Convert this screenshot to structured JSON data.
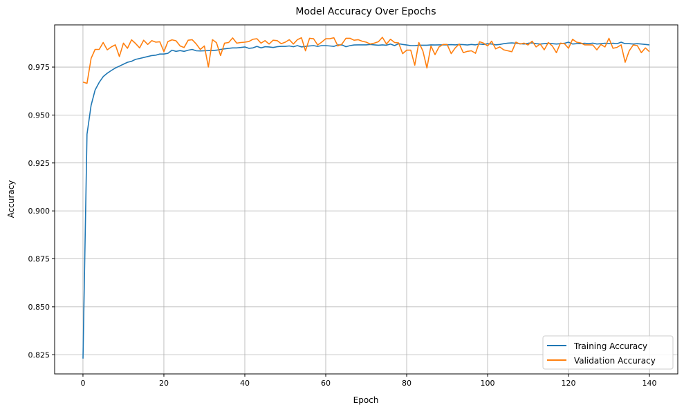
{
  "chart_data": {
    "type": "line",
    "title": "Model Accuracy Over Epochs",
    "xlabel": "Epoch",
    "ylabel": "Accuracy",
    "xlim": [
      -7,
      147
    ],
    "ylim": [
      0.815,
      0.997
    ],
    "xticks": [
      0,
      20,
      40,
      60,
      80,
      100,
      120,
      140
    ],
    "yticks": [
      0.825,
      0.85,
      0.875,
      0.9,
      0.925,
      0.95,
      0.975
    ],
    "ytick_labels": [
      "0.825",
      "0.850",
      "0.875",
      "0.900",
      "0.925",
      "0.950",
      "0.975"
    ],
    "grid": true,
    "legend_position": "bottom-right",
    "series": [
      {
        "name": "Training Accuracy",
        "color": "#1f77b4",
        "values": [
          0.823,
          0.94,
          0.955,
          0.963,
          0.967,
          0.97,
          0.9718,
          0.9732,
          0.9745,
          0.9755,
          0.9765,
          0.9775,
          0.978,
          0.979,
          0.9795,
          0.98,
          0.9805,
          0.981,
          0.9812,
          0.9818,
          0.9818,
          0.9822,
          0.9838,
          0.9832,
          0.9836,
          0.9832,
          0.9838,
          0.9842,
          0.9835,
          0.9834,
          0.9835,
          0.9836,
          0.9836,
          0.9838,
          0.9842,
          0.9845,
          0.9848,
          0.985,
          0.985,
          0.9852,
          0.9855,
          0.9848,
          0.985,
          0.9858,
          0.985,
          0.9856,
          0.9855,
          0.9852,
          0.9856,
          0.9858,
          0.9858,
          0.986,
          0.9856,
          0.9862,
          0.9855,
          0.9858,
          0.986,
          0.9862,
          0.9858,
          0.9862,
          0.9862,
          0.986,
          0.9858,
          0.9865,
          0.9866,
          0.9856,
          0.9862,
          0.9865,
          0.9866,
          0.9866,
          0.9866,
          0.9868,
          0.9866,
          0.9864,
          0.9866,
          0.9864,
          0.987,
          0.9862,
          0.9872,
          0.9868,
          0.9865,
          0.9862,
          0.9862,
          0.9864,
          0.9864,
          0.9864,
          0.9866,
          0.9865,
          0.9866,
          0.9866,
          0.9866,
          0.9867,
          0.9866,
          0.9868,
          0.9867,
          0.9865,
          0.9868,
          0.9866,
          0.987,
          0.9868,
          0.9872,
          0.987,
          0.9866,
          0.9868,
          0.9872,
          0.9875,
          0.9876,
          0.9874,
          0.9872,
          0.987,
          0.9874,
          0.9876,
          0.9872,
          0.987,
          0.9872,
          0.9874,
          0.9872,
          0.987,
          0.9872,
          0.9874,
          0.988,
          0.987,
          0.9872,
          0.9872,
          0.9874,
          0.9872,
          0.9875,
          0.987,
          0.9872,
          0.9874,
          0.9872,
          0.9874,
          0.9872,
          0.988,
          0.9872,
          0.9872,
          0.987,
          0.9872,
          0.987,
          0.9868,
          0.9866
        ]
      },
      {
        "name": "Validation Accuracy",
        "color": "#ff7f0e",
        "values": [
          0.9672,
          0.9665,
          0.9795,
          0.9842,
          0.9842,
          0.9878,
          0.984,
          0.9855,
          0.9866,
          0.9805,
          0.9875,
          0.9848,
          0.9892,
          0.9873,
          0.985,
          0.989,
          0.9868,
          0.9888,
          0.988,
          0.9882,
          0.983,
          0.9883,
          0.9892,
          0.9887,
          0.986,
          0.9852,
          0.989,
          0.9893,
          0.987,
          0.9842,
          0.986,
          0.975,
          0.9893,
          0.9877,
          0.981,
          0.9875,
          0.9878,
          0.9902,
          0.9875,
          0.9878,
          0.988,
          0.9883,
          0.9895,
          0.9898,
          0.9875,
          0.9888,
          0.987,
          0.989,
          0.9888,
          0.9872,
          0.988,
          0.9893,
          0.987,
          0.9893,
          0.9903,
          0.9835,
          0.99,
          0.9898,
          0.9865,
          0.988,
          0.9898,
          0.9898,
          0.9903,
          0.986,
          0.987,
          0.99,
          0.99,
          0.989,
          0.9893,
          0.9885,
          0.988,
          0.987,
          0.9875,
          0.9882,
          0.9905,
          0.987,
          0.9895,
          0.9878,
          0.9876,
          0.982,
          0.9838,
          0.9838,
          0.976,
          0.9878,
          0.9835,
          0.9745,
          0.986,
          0.9815,
          0.9855,
          0.9868,
          0.9868,
          0.982,
          0.985,
          0.987,
          0.9825,
          0.9832,
          0.9835,
          0.9822,
          0.9882,
          0.9875,
          0.986,
          0.9885,
          0.9845,
          0.9855,
          0.984,
          0.9835,
          0.983,
          0.988,
          0.987,
          0.9875,
          0.9865,
          0.9885,
          0.9855,
          0.987,
          0.984,
          0.9878,
          0.986,
          0.9825,
          0.9875,
          0.9872,
          0.9848,
          0.9895,
          0.988,
          0.9876,
          0.9866,
          0.9866,
          0.9865,
          0.984,
          0.9868,
          0.9855,
          0.99,
          0.9848,
          0.9853,
          0.9866,
          0.9775,
          0.9835,
          0.9865,
          0.9862,
          0.9825,
          0.985,
          0.983
        ]
      }
    ]
  }
}
